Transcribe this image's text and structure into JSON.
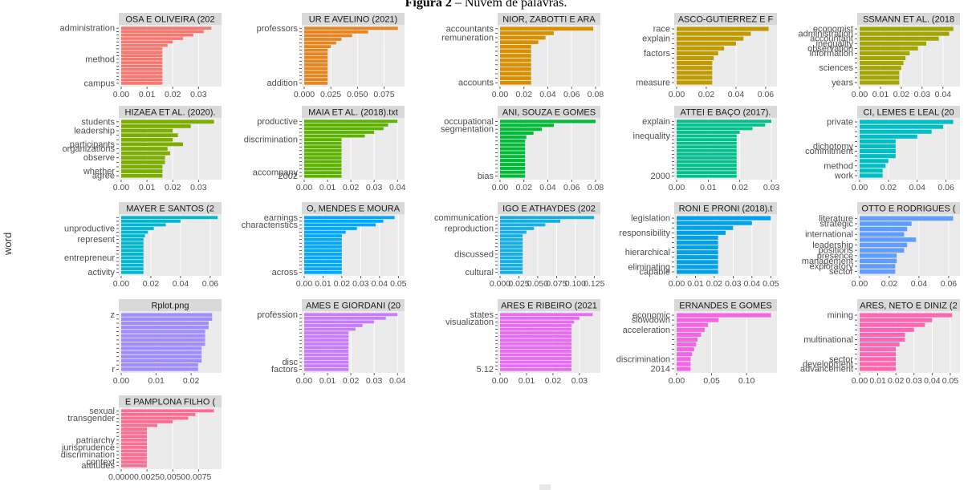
{
  "figure_title": {
    "prefix": "Figura 2",
    "separator": " – ",
    "text": "Nuvem de palavras."
  },
  "chart_data": {
    "type": "bar",
    "layout": "faceted small multiples, horizontal bars sorted by value",
    "y_axis_title": "word",
    "grid": true,
    "panels": [
      {
        "strip": "OSA E OLIVEIRA (202",
        "color": "#F8766D",
        "ticks": [
          "0.00",
          "0.01",
          "0.02",
          "0.03"
        ],
        "xlim": [
          0,
          0.038
        ],
        "words": [
          "administration",
          "",
          "",
          "",
          "",
          "",
          "",
          "",
          "",
          "method",
          "",
          "",
          "",
          "",
          "",
          "",
          "campus"
        ],
        "values": [
          0.035,
          0.032,
          0.028,
          0.024,
          0.02,
          0.018,
          0.016,
          0.016,
          0.016,
          0.016,
          0.016,
          0.016,
          0.016,
          0.016,
          0.016,
          0.016,
          0.016
        ]
      },
      {
        "strip": "UR E AVELINO (2021)",
        "color": "#E7851E",
        "ticks": [
          "0.000",
          "0.025",
          "0.050",
          "0.075"
        ],
        "xlim": [
          0,
          0.092
        ],
        "words": [
          "professors",
          "",
          "",
          "",
          "",
          "",
          "",
          "",
          "",
          "",
          "",
          "",
          "",
          "",
          "",
          "addition"
        ],
        "values": [
          0.088,
          0.06,
          0.045,
          0.035,
          0.03,
          0.025,
          0.022,
          0.022,
          0.022,
          0.022,
          0.022,
          0.022,
          0.022,
          0.022,
          0.022,
          0.022
        ]
      },
      {
        "strip": "NIOR, ZABOTTI E ARA",
        "color": "#D89000",
        "ticks": [
          "0.00",
          "0.02",
          "0.04",
          "0.06",
          "0.08"
        ],
        "xlim": [
          0,
          0.082
        ],
        "words": [
          "accountants",
          "",
          "remuneration",
          "",
          "",
          "",
          "",
          "",
          "",
          "",
          "",
          "",
          "accounts"
        ],
        "values": [
          0.078,
          0.045,
          0.038,
          0.032,
          0.026,
          0.026,
          0.026,
          0.026,
          0.026,
          0.026,
          0.026,
          0.026,
          0.026
        ]
      },
      {
        "strip": "ASCO-GUTIERREZ E F",
        "color": "#C09B00",
        "ticks": [
          "0.00",
          "0.02",
          "0.04",
          "0.06"
        ],
        "xlim": [
          0,
          0.066
        ],
        "words": [
          "race",
          "",
          "explain",
          "",
          "",
          "factors",
          "",
          "",
          "",
          "",
          "",
          "measure"
        ],
        "values": [
          0.062,
          0.05,
          0.045,
          0.04,
          0.032,
          0.028,
          0.025,
          0.024,
          0.024,
          0.024,
          0.024,
          0.024
        ]
      },
      {
        "strip": "SSMANN ET AL. (2018",
        "color": "#A3A500",
        "ticks": [
          "0.00",
          "0.01",
          "0.02",
          "0.03",
          "0.04"
        ],
        "xlim": [
          0,
          0.047
        ],
        "words": [
          "economist",
          "administration",
          "accountant",
          "inequality",
          "observation",
          "information",
          "",
          "",
          "sciences",
          "",
          "",
          "years"
        ],
        "values": [
          0.045,
          0.043,
          0.038,
          0.032,
          0.028,
          0.024,
          0.022,
          0.021,
          0.02,
          0.019,
          0.019,
          0.019
        ]
      },
      {
        "strip": "HIZAEA ET AL. (2020).",
        "color": "#7CAE00",
        "ticks": [
          "0.00",
          "0.01",
          "0.02",
          "0.03"
        ],
        "xlim": [
          0,
          0.038
        ],
        "words": [
          "students",
          "",
          "leadership",
          "",
          "",
          "participants",
          "organizations",
          "",
          "observe",
          "",
          "",
          "whether",
          "agree"
        ],
        "values": [
          0.036,
          0.027,
          0.02,
          0.022,
          0.02,
          0.024,
          0.018,
          0.019,
          0.017,
          0.017,
          0.016,
          0.016,
          0.016
        ]
      },
      {
        "strip": "MAIA ET AL. (2018).txt",
        "color": "#5BB300",
        "ticks": [
          "0.00",
          "0.01",
          "0.02",
          "0.03",
          "0.04"
        ],
        "xlim": [
          0,
          0.042
        ],
        "words": [
          "productive",
          "",
          "",
          "",
          "",
          "discrimination",
          "",
          "",
          "",
          "",
          "",
          "",
          "",
          "",
          "accompany",
          "2002"
        ],
        "values": [
          0.04,
          0.036,
          0.034,
          0.03,
          0.026,
          0.016,
          0.016,
          0.016,
          0.016,
          0.016,
          0.016,
          0.016,
          0.016,
          0.016,
          0.016,
          0.016
        ]
      },
      {
        "strip": "ANI, SOUZA E GOMES",
        "color": "#00BA38",
        "ticks": [
          "0.00",
          "0.02",
          "0.04",
          "0.06",
          "0.08"
        ],
        "xlim": [
          0,
          0.082
        ],
        "words": [
          "occupational",
          "",
          "segmentation",
          "",
          "",
          "",
          "",
          "",
          "",
          "",
          "",
          "",
          "",
          "",
          "bias"
        ],
        "values": [
          0.08,
          0.045,
          0.035,
          0.028,
          0.022,
          0.021,
          0.021,
          0.021,
          0.021,
          0.021,
          0.021,
          0.021,
          0.021,
          0.021,
          0.021
        ]
      },
      {
        "strip": "ATTEI E BAÇO (2017).",
        "color": "#00C08B",
        "ticks": [
          "0.00",
          "0.01",
          "0.02",
          "0.03"
        ],
        "xlim": [
          0,
          0.031
        ],
        "words": [
          "explain",
          "",
          "",
          "",
          "inequality",
          "",
          "",
          "",
          "",
          "",
          "",
          "",
          "",
          "",
          "",
          "2000"
        ],
        "values": [
          0.03,
          0.028,
          0.024,
          0.02,
          0.019,
          0.019,
          0.019,
          0.019,
          0.019,
          0.019,
          0.019,
          0.019,
          0.019,
          0.019,
          0.019,
          0.019
        ]
      },
      {
        "strip": "CI, LEMES E LEAL (20",
        "color": "#00BFC4",
        "ticks": [
          "0.00",
          "0.02",
          "0.04",
          "0.06"
        ],
        "xlim": [
          0,
          0.068
        ],
        "words": [
          "private",
          "",
          "",
          "",
          "",
          "dichotomy",
          "commitment",
          "",
          "",
          "method",
          "",
          "work"
        ],
        "values": [
          0.065,
          0.058,
          0.05,
          0.04,
          0.025,
          0.025,
          0.025,
          0.025,
          0.02,
          0.018,
          0.016,
          0.016
        ]
      },
      {
        "strip": "MAYER E SANTOS (2",
        "color": "#00B6D0",
        "ticks": [
          "0.00",
          "0.02",
          "0.04",
          "0.06"
        ],
        "xlim": [
          0,
          0.066
        ],
        "words": [
          "",
          "",
          "",
          "unproductive",
          "",
          "",
          "represent",
          "",
          "",
          "",
          "",
          "entrepreneur",
          "",
          "",
          "",
          "activity"
        ],
        "values": [
          0.065,
          0.04,
          0.03,
          0.022,
          0.018,
          0.016,
          0.015,
          0.015,
          0.015,
          0.015,
          0.015,
          0.015,
          0.015,
          0.015,
          0.015,
          0.015
        ]
      },
      {
        "strip": "O, MENDES E MOURA",
        "color": "#00A9FF",
        "ticks": [
          "0.00",
          "0.01",
          "0.02",
          "0.03",
          "0.04",
          "0.05"
        ],
        "xlim": [
          0,
          0.052
        ],
        "words": [
          "earnings",
          "",
          "characteristics",
          "",
          "",
          "",
          "",
          "",
          "",
          "",
          "",
          "",
          "",
          "",
          "",
          "across"
        ],
        "values": [
          0.048,
          0.042,
          0.038,
          0.028,
          0.022,
          0.02,
          0.02,
          0.02,
          0.02,
          0.02,
          0.02,
          0.02,
          0.02,
          0.02,
          0.02,
          0.02
        ]
      },
      {
        "strip": "IGO E ATHAYDES (202",
        "color": "#14AFE6",
        "ticks": [
          "0.000",
          "0.025",
          "0.050",
          "0.075",
          "0.100",
          "0.125"
        ],
        "xlim": [
          0,
          0.13
        ],
        "words": [
          "communication",
          "",
          "",
          "reproduction",
          "",
          "",
          "",
          "",
          "",
          "",
          "discussed",
          "",
          "",
          "",
          "",
          "cultural"
        ],
        "values": [
          0.125,
          0.08,
          0.06,
          0.045,
          0.035,
          0.03,
          0.03,
          0.03,
          0.03,
          0.03,
          0.03,
          0.03,
          0.03,
          0.03,
          0.03,
          0.03
        ]
      },
      {
        "strip": "RONI E PRONI (2018).t",
        "color": "#00A1E6",
        "ticks": [
          "0.00",
          "0.01",
          "0.02",
          "0.03",
          "0.04",
          "0.05"
        ],
        "xlim": [
          0,
          0.052
        ],
        "words": [
          "legislation",
          "",
          "",
          "responsibility",
          "",
          "",
          "",
          "hierarchical",
          "",
          "",
          "eliminating",
          "capable"
        ],
        "values": [
          0.05,
          0.04,
          0.03,
          0.026,
          0.022,
          0.022,
          0.022,
          0.022,
          0.022,
          0.022,
          0.022,
          0.022
        ]
      },
      {
        "strip": "OTTO E RODRIGUES (",
        "color": "#619CFF",
        "ticks": [
          "0.00",
          "0.02",
          "0.04",
          "0.06"
        ],
        "xlim": [
          0,
          0.066
        ],
        "words": [
          "literature",
          "strategic",
          "",
          "international",
          "",
          "leadership",
          "positions",
          "presence",
          "management",
          "exploratory",
          "sector"
        ],
        "values": [
          0.063,
          0.035,
          0.032,
          0.03,
          0.038,
          0.032,
          0.03,
          0.025,
          0.025,
          0.024,
          0.024
        ]
      },
      {
        "strip": "Rplot.png",
        "color": "#9F8CFF",
        "ticks": [
          "0.00",
          "0.01",
          "0.02"
        ],
        "xlim": [
          0,
          0.028
        ],
        "words": [
          "z",
          "",
          "",
          "",
          "",
          "",
          "",
          "",
          "",
          "",
          "",
          "",
          "",
          "r"
        ],
        "values": [
          0.026,
          0.026,
          0.025,
          0.025,
          0.024,
          0.024,
          0.024,
          0.024,
          0.023,
          0.023,
          0.023,
          0.023,
          0.022,
          0.022
        ]
      },
      {
        "strip": "AMES E GIORDANI (20",
        "color": "#C77CFF",
        "ticks": [
          "0.00",
          "0.01",
          "0.02",
          "0.03",
          "0.04"
        ],
        "xlim": [
          0,
          0.042
        ],
        "words": [
          "profession",
          "",
          "",
          "",
          "",
          "",
          "",
          "",
          "",
          "",
          "",
          "",
          "",
          "disc",
          "",
          "factors"
        ],
        "values": [
          0.04,
          0.035,
          0.03,
          0.025,
          0.022,
          0.019,
          0.019,
          0.019,
          0.019,
          0.019,
          0.019,
          0.019,
          0.019,
          0.019,
          0.019,
          0.019
        ]
      },
      {
        "strip": "ARES E RIBEIRO (2021",
        "color": "#E76BF3",
        "ticks": [
          "0.00",
          "0.01",
          "0.02",
          "0.03"
        ],
        "xlim": [
          0,
          0.037
        ],
        "words": [
          "states",
          "",
          "visualization",
          "",
          "",
          "",
          "",
          "",
          "",
          "",
          "",
          "",
          "",
          "",
          "",
          "5.12"
        ],
        "values": [
          0.035,
          0.03,
          0.028,
          0.027,
          0.027,
          0.027,
          0.027,
          0.027,
          0.027,
          0.027,
          0.027,
          0.027,
          0.027,
          0.027,
          0.027,
          0.027
        ]
      },
      {
        "strip": "ERNANDES E GOMES",
        "color": "#F564E3",
        "ticks": [
          "0.00",
          "0.05",
          "0.10"
        ],
        "xlim": [
          0,
          0.14
        ],
        "words": [
          "economic",
          "slowdown",
          "",
          "acceleration",
          "",
          "",
          "",
          "",
          "",
          "discrimination",
          "",
          "2014"
        ],
        "values": [
          0.135,
          0.06,
          0.045,
          0.04,
          0.035,
          0.03,
          0.028,
          0.025,
          0.022,
          0.02,
          0.02,
          0.02
        ]
      },
      {
        "strip": "ARES, NETO E DINIZ (2",
        "color": "#FF64B0",
        "ticks": [
          "0.00",
          "0.01",
          "0.02",
          "0.03",
          "0.04",
          "0.05"
        ],
        "xlim": [
          0,
          0.054
        ],
        "words": [
          "mining",
          "",
          "",
          "",
          "",
          "multinational",
          "",
          "",
          "",
          "sector",
          "development",
          "advancement"
        ],
        "values": [
          0.051,
          0.04,
          0.036,
          0.03,
          0.025,
          0.025,
          0.022,
          0.02,
          0.02,
          0.02,
          0.02,
          0.02
        ]
      },
      {
        "strip": "E PAMPLONA FILHO (",
        "color": "#FF6C91",
        "ticks": [
          "0.0000",
          "0.0025",
          "0.0050",
          "0.0075"
        ],
        "xlim": [
          0,
          0.0095
        ],
        "words": [
          "sexual",
          "",
          "transgender",
          "",
          "",
          "",
          "",
          "",
          "patriarchy",
          "",
          "jurisprudence",
          "",
          "discrimination",
          "",
          "context",
          "attitudes"
        ],
        "values": [
          0.009,
          0.0072,
          0.0065,
          0.005,
          0.0035,
          0.0025,
          0.0025,
          0.0025,
          0.0025,
          0.0025,
          0.0025,
          0.0025,
          0.0025,
          0.0025,
          0.0025,
          0.0025
        ]
      }
    ]
  }
}
